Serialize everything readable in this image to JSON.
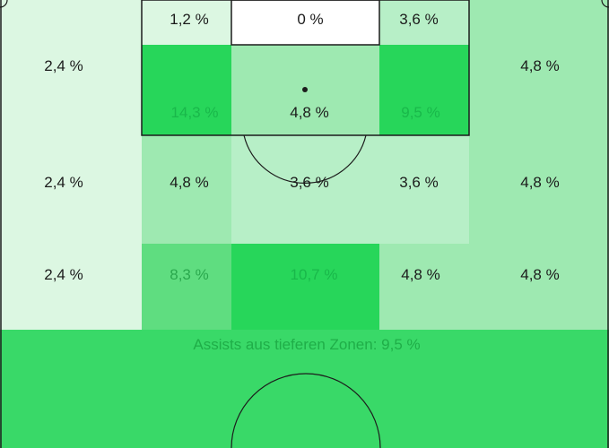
{
  "colors": {
    "very_light": "#dcf7e2",
    "light": "#b7efc7",
    "medium": "#9ee9b1",
    "medium_strong": "#5fdd80",
    "strong": "#27d65a",
    "deep_zone": "#39d968",
    "white": "#ffffff",
    "line": "#1c1c1c"
  },
  "zones": {
    "goal_left": "1,2 %",
    "goal_center": "0 %",
    "goal_right": "3,6 %",
    "box_left": "14,3 %",
    "box_center": "4,8 %",
    "box_right": "9,5 %",
    "left_wing_top": "2,4 %",
    "left_wing_mid": "2,4 %",
    "left_wing_bottom": "2,4 %",
    "right_wing_top": "4,8 %",
    "right_wing_mid": "4,8 %",
    "right_wing_bottom": "4,8 %",
    "mid_left": "4,8 %",
    "mid_center": "3,6 %",
    "mid_right": "3,6 %",
    "low_left": "8,3 %",
    "low_center": "10,7 %",
    "low_right": "4,8 %"
  },
  "deep_zones_label": "Assists aus tieferen Zonen: 9,5 %"
}
